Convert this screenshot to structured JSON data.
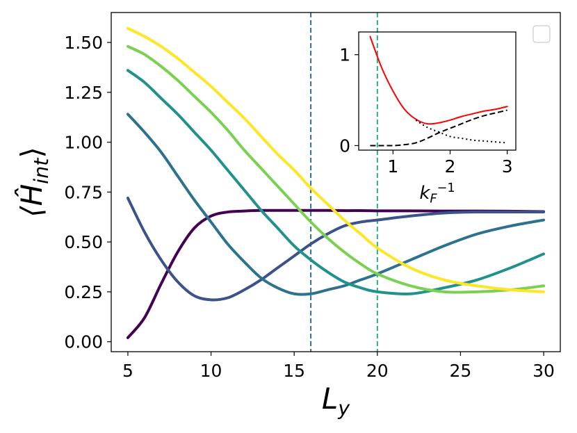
{
  "chart_data": [
    {
      "type": "line",
      "title": "",
      "xlabel": "L",
      "xlabel_sub": "y",
      "ylabel": "⟨Ĥ",
      "ylabel_sub": "int",
      "ylabel_close": "⟩",
      "xlim": [
        4,
        31
      ],
      "ylim": [
        -0.05,
        1.65
      ],
      "xticks": [
        "5",
        "10",
        "15",
        "20",
        "25",
        "30"
      ],
      "yticks": [
        "0.00",
        "0.25",
        "0.50",
        "0.75",
        "1.00",
        "1.25",
        "1.50"
      ],
      "vlines": [
        {
          "x": 16,
          "color": "#2c728e",
          "style": "dashed"
        },
        {
          "x": 20,
          "color": "#28ae80",
          "style": "dashed"
        }
      ],
      "legend": "top-right, empty",
      "series": [
        {
          "color": "#440154",
          "x": [
            5,
            6,
            7,
            8,
            9,
            10,
            11,
            12,
            13,
            14,
            15,
            16,
            17,
            18,
            19,
            20,
            22,
            24,
            26,
            28,
            30
          ],
          "values": [
            0.02,
            0.12,
            0.29,
            0.45,
            0.57,
            0.63,
            0.65,
            0.655,
            0.658,
            0.658,
            0.658,
            0.658,
            0.658,
            0.657,
            0.657,
            0.656,
            0.656,
            0.655,
            0.655,
            0.654,
            0.652
          ]
        },
        {
          "color": "#3b528b",
          "x": [
            5,
            6,
            7,
            8,
            9,
            10,
            11,
            12,
            13,
            14,
            15,
            16,
            17,
            18,
            19,
            20,
            22,
            24,
            26,
            28,
            30
          ],
          "values": [
            0.72,
            0.55,
            0.41,
            0.3,
            0.23,
            0.21,
            0.22,
            0.26,
            0.31,
            0.37,
            0.43,
            0.49,
            0.54,
            0.58,
            0.6,
            0.61,
            0.63,
            0.645,
            0.65,
            0.65,
            0.65
          ]
        },
        {
          "color": "#2c728e",
          "x": [
            5,
            6,
            7,
            8,
            9,
            10,
            11,
            12,
            13,
            14,
            15,
            16,
            17,
            18,
            19,
            20,
            22,
            24,
            26,
            28,
            30
          ],
          "values": [
            1.14,
            1.05,
            0.95,
            0.83,
            0.71,
            0.6,
            0.49,
            0.4,
            0.32,
            0.27,
            0.24,
            0.24,
            0.26,
            0.28,
            0.31,
            0.34,
            0.41,
            0.48,
            0.54,
            0.58,
            0.61
          ]
        },
        {
          "color": "#21918c",
          "x": [
            5,
            6,
            7,
            8,
            9,
            10,
            11,
            12,
            13,
            14,
            15,
            16,
            17,
            18,
            19,
            20,
            22,
            24,
            26,
            28,
            30
          ],
          "values": [
            1.36,
            1.3,
            1.22,
            1.14,
            1.05,
            0.96,
            0.86,
            0.76,
            0.66,
            0.57,
            0.48,
            0.41,
            0.35,
            0.3,
            0.27,
            0.25,
            0.24,
            0.27,
            0.31,
            0.37,
            0.44
          ]
        },
        {
          "color": "#7ad151",
          "x": [
            5,
            6,
            7,
            8,
            9,
            10,
            11,
            12,
            13,
            14,
            15,
            16,
            17,
            18,
            19,
            20,
            22,
            24,
            26,
            28,
            30
          ],
          "values": [
            1.48,
            1.44,
            1.38,
            1.31,
            1.23,
            1.15,
            1.06,
            0.96,
            0.87,
            0.78,
            0.69,
            0.6,
            0.52,
            0.45,
            0.39,
            0.34,
            0.28,
            0.25,
            0.25,
            0.26,
            0.28
          ]
        },
        {
          "color": "#fde725",
          "x": [
            5,
            6,
            7,
            8,
            9,
            10,
            11,
            12,
            13,
            14,
            15,
            16,
            17,
            18,
            19,
            20,
            22,
            24,
            26,
            28,
            30
          ],
          "values": [
            1.57,
            1.53,
            1.48,
            1.42,
            1.35,
            1.28,
            1.2,
            1.12,
            1.03,
            0.94,
            0.86,
            0.77,
            0.69,
            0.61,
            0.54,
            0.47,
            0.37,
            0.31,
            0.28,
            0.26,
            0.25
          ]
        }
      ]
    },
    {
      "type": "line",
      "title": "",
      "xlabel": "k",
      "xlabel_sub": "F",
      "xlabel_sup": "−1",
      "ylabel": "",
      "xlim": [
        0.4,
        3.15
      ],
      "ylim": [
        -0.05,
        1.25
      ],
      "xticks": [
        "1",
        "2",
        "3"
      ],
      "yticks": [
        "0",
        "1"
      ],
      "series": [
        {
          "color": "#ff0000",
          "style": "solid",
          "x": [
            0.6,
            0.8,
            1.0,
            1.2,
            1.4,
            1.6,
            1.8,
            2.0,
            2.2,
            2.4,
            2.6,
            2.8,
            3.0
          ],
          "values": [
            1.2,
            0.86,
            0.6,
            0.4,
            0.29,
            0.24,
            0.25,
            0.28,
            0.32,
            0.35,
            0.38,
            0.4,
            0.43
          ]
        },
        {
          "color": "#000000",
          "style": "dashed",
          "x": [
            0.6,
            0.8,
            1.0,
            1.2,
            1.4,
            1.6,
            1.8,
            2.0,
            2.2,
            2.4,
            2.6,
            2.8,
            3.0
          ],
          "values": [
            0.0,
            0.0,
            0.0,
            0.01,
            0.03,
            0.08,
            0.14,
            0.19,
            0.24,
            0.29,
            0.33,
            0.36,
            0.39
          ]
        },
        {
          "color": "#000000",
          "style": "dotted",
          "x": [
            1.4,
            1.6,
            1.8,
            2.0,
            2.2,
            2.4,
            2.6,
            2.8,
            3.0
          ],
          "values": [
            0.28,
            0.2,
            0.15,
            0.1,
            0.08,
            0.06,
            0.05,
            0.04,
            0.03
          ]
        }
      ]
    }
  ]
}
